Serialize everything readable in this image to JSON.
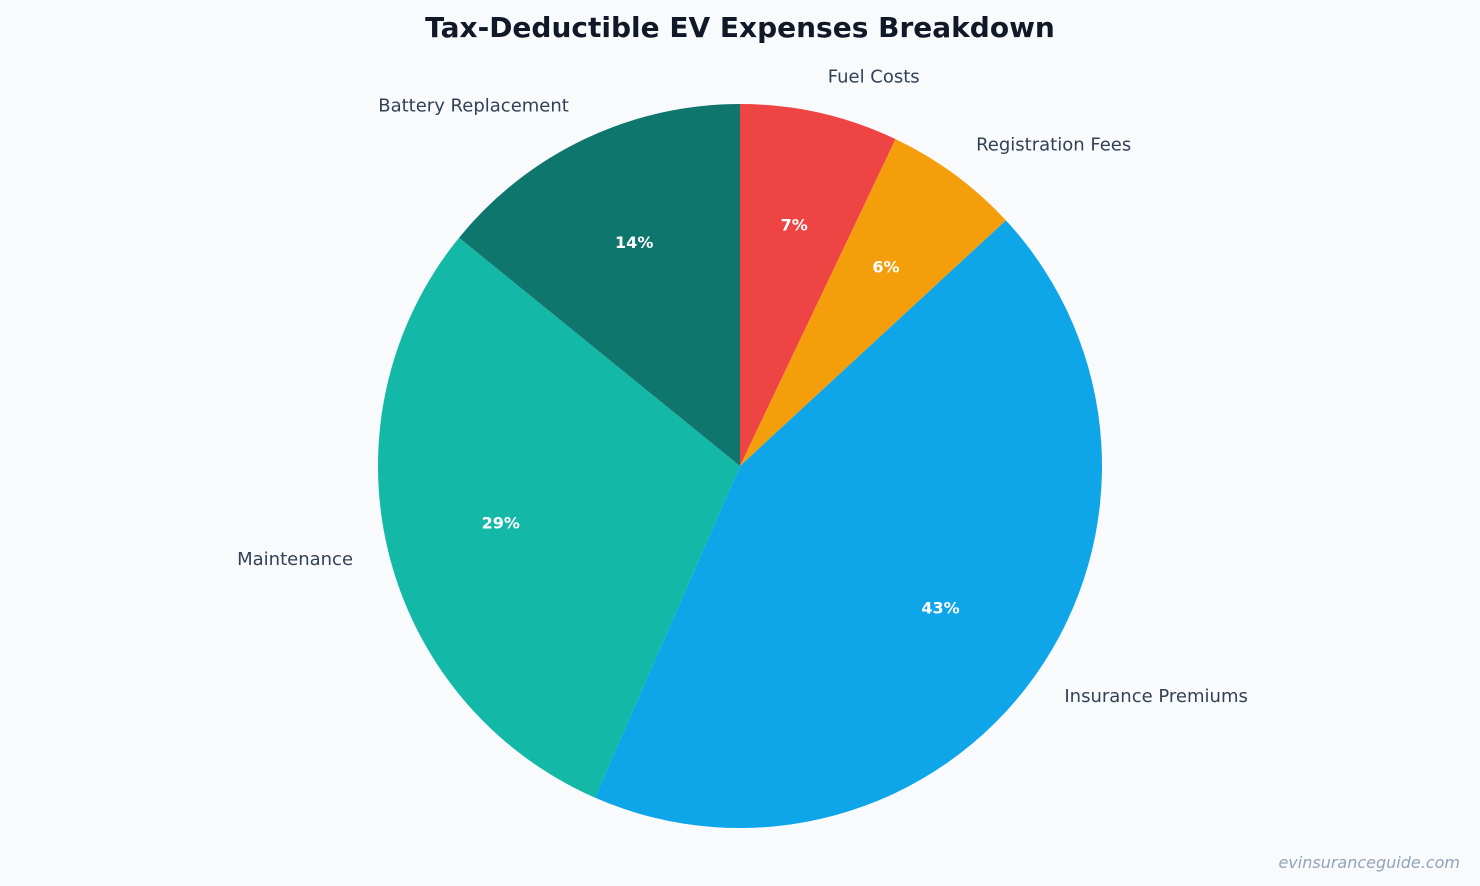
{
  "chart_data": {
    "type": "pie",
    "title": "Tax-Deductible EV Expenses Breakdown",
    "start_angle_deg": 90,
    "direction": "clockwise",
    "slices": [
      {
        "label": "Fuel Costs",
        "value": 7,
        "pct_label": "7%",
        "color": "#ef4444"
      },
      {
        "label": "Registration Fees",
        "value": 6,
        "pct_label": "6%",
        "color": "#f59e0b"
      },
      {
        "label": "Insurance Premiums",
        "value": 43,
        "pct_label": "43%",
        "color": "#0ea5e9"
      },
      {
        "label": "Maintenance",
        "value": 29,
        "pct_label": "29%",
        "color": "#14b8a6"
      },
      {
        "label": "Battery Replacement",
        "value": 14,
        "pct_label": "14%",
        "color": "#0f766e"
      }
    ]
  },
  "watermark": "evinsuranceguide.com"
}
